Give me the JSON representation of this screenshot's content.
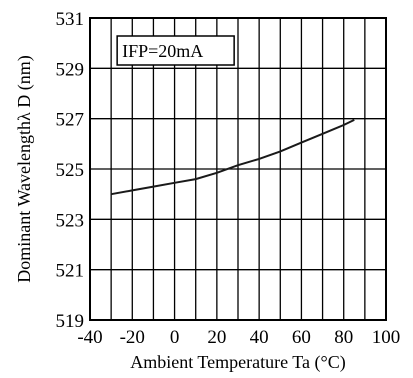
{
  "chart_data": {
    "type": "line",
    "title": "",
    "xlabel": "Ambient Temperature Ta (°C)",
    "ylabel": "Dominant Wavelengthλ D (nm)",
    "annotation": "IFP=20mA",
    "xlim": [
      -40,
      100
    ],
    "ylim": [
      519,
      531
    ],
    "x_ticks": [
      "-40",
      "-20",
      "0",
      "20",
      "40",
      "60",
      "80",
      "100"
    ],
    "y_ticks": [
      "519",
      "521",
      "523",
      "525",
      "527",
      "529",
      "531"
    ],
    "grid": true,
    "grid_x": [
      -40,
      -30,
      -20,
      -10,
      0,
      10,
      20,
      30,
      40,
      50,
      60,
      70,
      80,
      90,
      100
    ],
    "grid_y": [
      519,
      521,
      523,
      525,
      527,
      529,
      531
    ],
    "series": [
      {
        "x": [
          -30,
          -20,
          -10,
          0,
          10,
          20,
          30,
          40,
          50,
          60,
          70,
          80,
          85
        ],
        "y": [
          524.0,
          524.15,
          524.3,
          524.45,
          524.6,
          524.85,
          525.15,
          525.4,
          525.7,
          526.05,
          526.4,
          526.75,
          526.95
        ]
      }
    ]
  }
}
